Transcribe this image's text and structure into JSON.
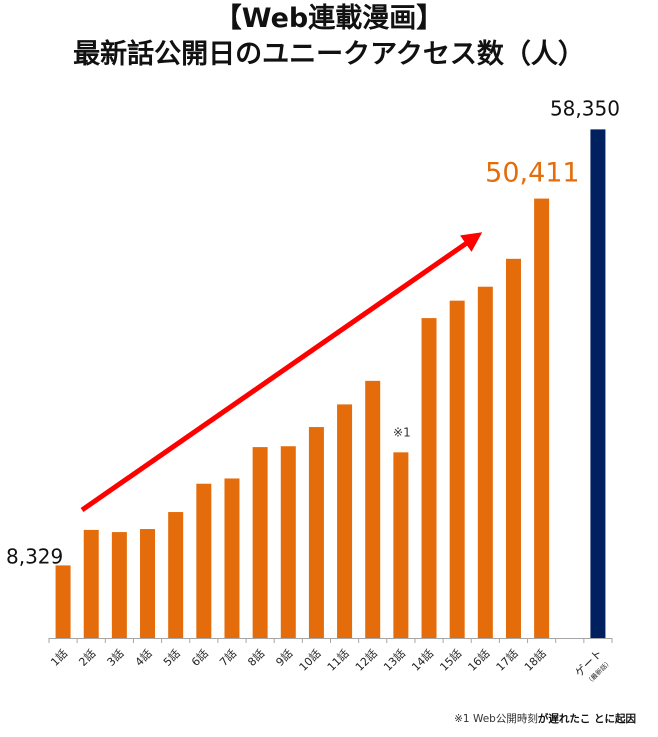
{
  "chart_data": {
    "type": "bar",
    "title": "【Web連載漫画】",
    "subtitle": "最新話公開日のユニークアクセス数（人）",
    "xlabel": "",
    "ylabel": "",
    "ylim": [
      0,
      60000
    ],
    "grid": false,
    "categories": [
      "1話",
      "2話",
      "3話",
      "4話",
      "5話",
      "6話",
      "7話",
      "8話",
      "9話",
      "10話",
      "11話",
      "12話",
      "13話",
      "14話",
      "15話",
      "16話",
      "17話",
      "18話",
      "",
      "ゲート"
    ],
    "gate_sublabel": "（最新話）",
    "values": [
      8329,
      12400,
      12150,
      12500,
      14450,
      17700,
      18300,
      21900,
      22000,
      24200,
      26800,
      29500,
      21300,
      36700,
      38700,
      40300,
      43500,
      50411,
      null,
      58350
    ],
    "bar_colors": {
      "default": "#E46C0A",
      "highlight": "#002060"
    },
    "highlight_index": 19,
    "data_labels": [
      {
        "index": 0,
        "text": "8,329",
        "color": "#111111"
      },
      {
        "index": 17,
        "text": "50,411",
        "color": "#E46C0A"
      },
      {
        "index": 19,
        "text": "58,350",
        "color": "#111111"
      }
    ],
    "annotations": [
      {
        "index": 12,
        "text": "※1"
      },
      {
        "type": "trend-arrow",
        "color": "#FF0000",
        "from_index": 1,
        "to_index": 16
      }
    ],
    "footnote": {
      "plain": "※1 Web公開時刻",
      "bold": "が遅れたこ とに起因"
    }
  }
}
